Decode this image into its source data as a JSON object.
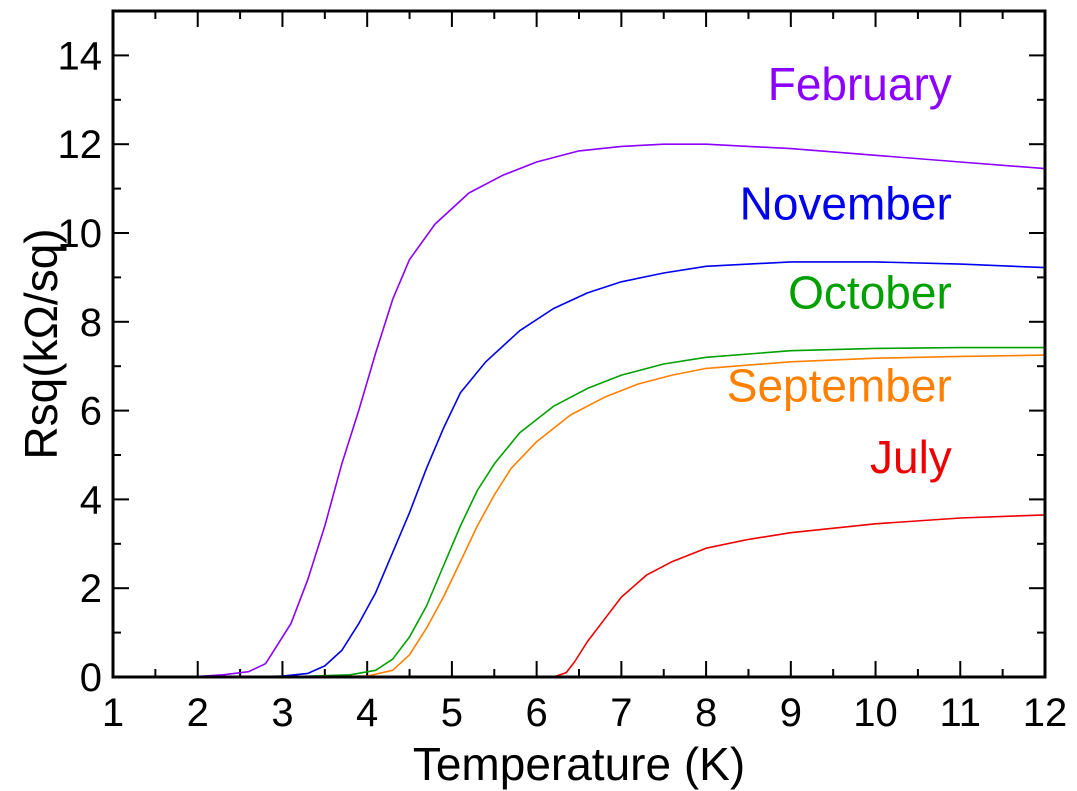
{
  "chart_data": {
    "type": "line",
    "xlabel": "Temperature (K)",
    "ylabel": "Rsq(kΩ/sq)",
    "xlim": [
      1,
      12
    ],
    "ylim": [
      0,
      15
    ],
    "x_ticks": [
      "1",
      "2",
      "3",
      "4",
      "5",
      "6",
      "7",
      "8",
      "9",
      "10",
      "11",
      "12"
    ],
    "y_ticks": [
      "0",
      "2",
      "4",
      "6",
      "8",
      "10",
      "12",
      "14"
    ],
    "x_tick_values": [
      1,
      2,
      3,
      4,
      5,
      6,
      7,
      8,
      9,
      10,
      11,
      12
    ],
    "y_tick_values": [
      0,
      2,
      4,
      6,
      8,
      10,
      12,
      14
    ],
    "grid": false,
    "series": [
      {
        "name": "February",
        "color": "#8b00ff",
        "x": [
          1.9,
          2.3,
          2.6,
          2.8,
          2.9,
          3.1,
          3.3,
          3.5,
          3.7,
          3.9,
          4.1,
          4.3,
          4.5,
          4.8,
          5.2,
          5.6,
          6.0,
          6.5,
          7.0,
          7.5,
          8.0,
          8.5,
          9.0,
          10.0,
          11.0,
          12.0
        ],
        "y": [
          0.0,
          0.05,
          0.12,
          0.3,
          0.6,
          1.2,
          2.2,
          3.4,
          4.8,
          6.0,
          7.3,
          8.5,
          9.4,
          10.2,
          10.9,
          11.3,
          11.6,
          11.85,
          11.95,
          12.0,
          12.0,
          11.95,
          11.9,
          11.75,
          11.6,
          11.45
        ]
      },
      {
        "name": "November",
        "color": "#0000ee",
        "x": [
          1.9,
          2.5,
          3.0,
          3.3,
          3.5,
          3.7,
          3.9,
          4.1,
          4.3,
          4.5,
          4.7,
          4.9,
          5.1,
          5.4,
          5.8,
          6.2,
          6.6,
          7.0,
          7.5,
          8.0,
          9.0,
          10.0,
          11.0,
          12.0
        ],
        "y": [
          0.0,
          0.0,
          0.02,
          0.08,
          0.25,
          0.6,
          1.2,
          1.9,
          2.8,
          3.7,
          4.7,
          5.6,
          6.4,
          7.1,
          7.8,
          8.3,
          8.65,
          8.9,
          9.1,
          9.25,
          9.35,
          9.35,
          9.3,
          9.22
        ]
      },
      {
        "name": "October",
        "color": "#00a000",
        "x": [
          1.9,
          3.0,
          3.8,
          4.1,
          4.3,
          4.5,
          4.7,
          4.9,
          5.1,
          5.3,
          5.5,
          5.8,
          6.2,
          6.6,
          7.0,
          7.5,
          8.0,
          9.0,
          10.0,
          11.0,
          12.0
        ],
        "y": [
          0.0,
          0.0,
          0.05,
          0.15,
          0.4,
          0.9,
          1.6,
          2.5,
          3.4,
          4.2,
          4.8,
          5.5,
          6.1,
          6.5,
          6.8,
          7.05,
          7.2,
          7.35,
          7.4,
          7.42,
          7.42
        ]
      },
      {
        "name": "September",
        "color": "#ff8000",
        "x": [
          1.9,
          3.0,
          4.0,
          4.3,
          4.5,
          4.7,
          4.9,
          5.1,
          5.3,
          5.5,
          5.7,
          6.0,
          6.4,
          6.8,
          7.2,
          7.6,
          8.0,
          9.0,
          10.0,
          11.0,
          12.0
        ],
        "y": [
          0.0,
          0.0,
          0.02,
          0.15,
          0.5,
          1.1,
          1.8,
          2.6,
          3.4,
          4.1,
          4.7,
          5.3,
          5.9,
          6.3,
          6.6,
          6.8,
          6.95,
          7.1,
          7.18,
          7.22,
          7.25
        ]
      },
      {
        "name": "July",
        "color": "#ee0000",
        "x": [
          1.9,
          3.0,
          5.0,
          6.2,
          6.35,
          6.45,
          6.6,
          6.8,
          7.0,
          7.3,
          7.6,
          8.0,
          8.5,
          9.0,
          10.0,
          11.0,
          12.0
        ],
        "y": [
          0.0,
          0.0,
          0.0,
          0.0,
          0.1,
          0.35,
          0.8,
          1.3,
          1.8,
          2.3,
          2.6,
          2.9,
          3.1,
          3.25,
          3.45,
          3.58,
          3.65
        ]
      }
    ],
    "annotations": [
      {
        "text": "February",
        "color": "#8b00ff",
        "x": 10.9,
        "y": 13.0
      },
      {
        "text": "November",
        "color": "#0000ee",
        "x": 10.9,
        "y": 10.3
      },
      {
        "text": "October",
        "color": "#00a000",
        "x": 10.9,
        "y": 8.3
      },
      {
        "text": "September",
        "color": "#ff8000",
        "x": 10.9,
        "y": 6.2
      },
      {
        "text": "July",
        "color": "#ee0000",
        "x": 10.9,
        "y": 4.6
      }
    ]
  }
}
